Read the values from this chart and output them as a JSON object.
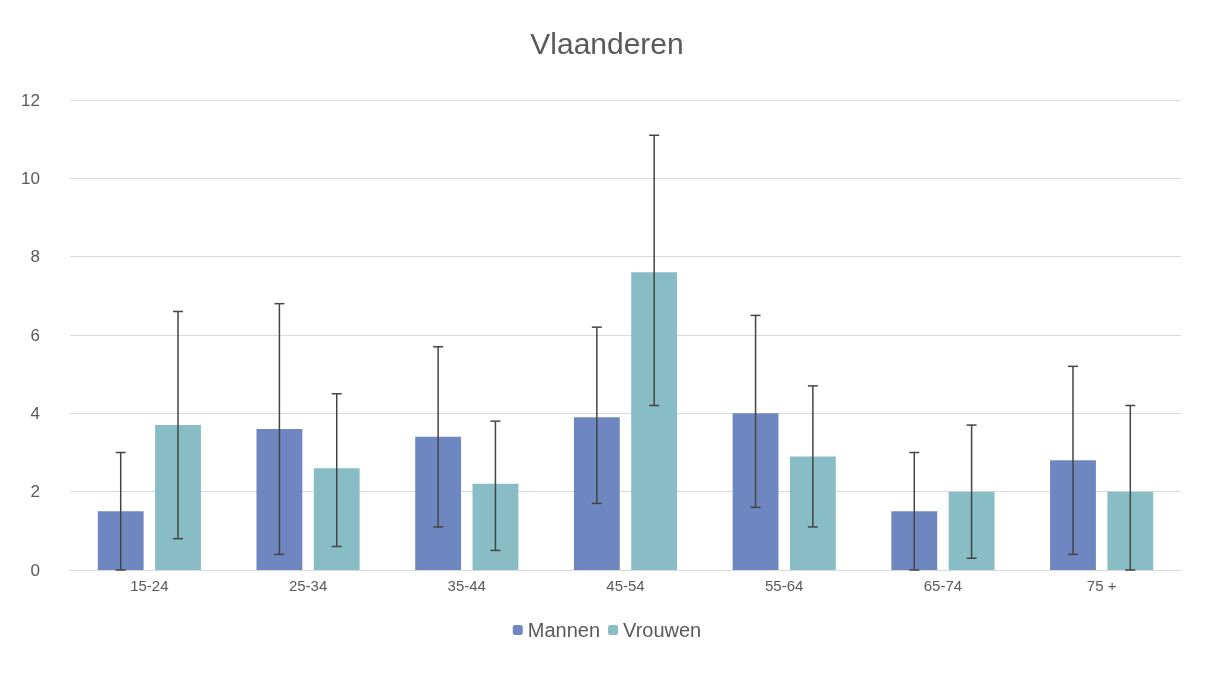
{
  "chart_data": {
    "type": "bar",
    "title": "Vlaanderen",
    "categories": [
      "15-24",
      "25-34",
      "35-44",
      "45-54",
      "55-64",
      "65-74",
      "75 +"
    ],
    "series": [
      {
        "name": "Mannen",
        "color": "#6f87c0",
        "values": [
          1.5,
          3.6,
          3.4,
          3.9,
          4.0,
          1.5,
          2.8
        ],
        "errors": [
          [
            0,
            3.0
          ],
          [
            0.4,
            6.8
          ],
          [
            1.1,
            5.7
          ],
          [
            1.7,
            6.2
          ],
          [
            1.6,
            6.5
          ],
          [
            0,
            3.0
          ],
          [
            0.4,
            5.2
          ]
        ]
      },
      {
        "name": "Vrouwen",
        "color": "#89bdc6",
        "values": [
          3.7,
          2.6,
          2.2,
          7.6,
          2.9,
          2.0,
          2.0
        ],
        "errors": [
          [
            0.8,
            6.6
          ],
          [
            0.6,
            4.5
          ],
          [
            0.5,
            3.8
          ],
          [
            4.2,
            11.1
          ],
          [
            1.1,
            4.7
          ],
          [
            0.3,
            3.7
          ],
          [
            0,
            4.2
          ]
        ]
      }
    ],
    "ylim": [
      0,
      12
    ],
    "yticks": [
      0,
      2,
      4,
      6,
      8,
      10,
      12
    ],
    "grid": "y",
    "legend": "bottom"
  }
}
